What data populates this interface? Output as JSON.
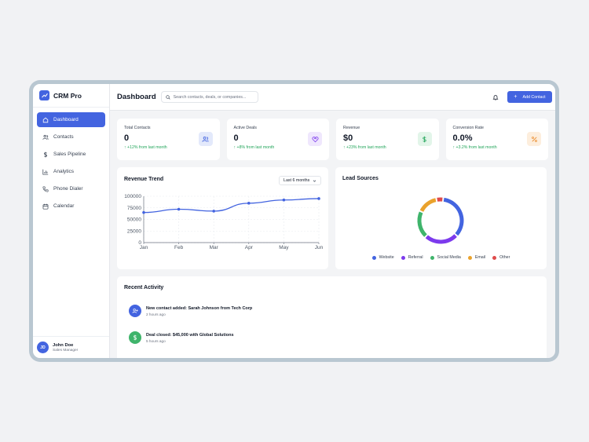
{
  "brand": {
    "name": "CRM Pro",
    "accent": "#4364e0"
  },
  "sidebar": {
    "items": [
      {
        "label": "Dashboard",
        "icon": "home-icon",
        "active": true
      },
      {
        "label": "Contacts",
        "icon": "users-icon",
        "active": false
      },
      {
        "label": "Sales Pipeline",
        "icon": "dollar-icon",
        "active": false
      },
      {
        "label": "Analytics",
        "icon": "bar-chart-icon",
        "active": false
      },
      {
        "label": "Phone Dialer",
        "icon": "phone-icon",
        "active": false
      },
      {
        "label": "Calendar",
        "icon": "calendar-icon",
        "active": false
      }
    ]
  },
  "user": {
    "initials": "JD",
    "name": "John Doe",
    "role": "Sales Manager"
  },
  "header": {
    "title": "Dashboard",
    "search_placeholder": "Search contacts, deals, or companies...",
    "add_label": "Add Contact"
  },
  "stats": [
    {
      "label": "Total Contacts",
      "value": "0",
      "change": "+12% from last month",
      "icon": "users-icon",
      "color": "#4364e0",
      "bg": "#e3e9fb"
    },
    {
      "label": "Active Deals",
      "value": "0",
      "change": "+8% from last month",
      "icon": "handshake-icon",
      "color": "#7c3aed",
      "bg": "#efe7fd"
    },
    {
      "label": "Revenue",
      "value": "$0",
      "change": "+23% from last month",
      "icon": "dollar-icon",
      "color": "#22a55a",
      "bg": "#e2f5e9"
    },
    {
      "label": "Conversion Rate",
      "value": "0.0%",
      "change": "+3.2% from last month",
      "icon": "percent-icon",
      "color": "#ea8a2a",
      "bg": "#fdeedd"
    }
  ],
  "revenue": {
    "title": "Revenue Trend",
    "period": "Last 6 months"
  },
  "chart_data": {
    "type": "line",
    "x": [
      "Jan",
      "Feb",
      "Mar",
      "Apr",
      "May",
      "Jun"
    ],
    "series": [
      {
        "values": [
          65000,
          72000,
          68000,
          85000,
          92000,
          95000
        ],
        "color": "#4364e0"
      }
    ],
    "yticks": [
      "100000",
      "75000",
      "50000",
      "25000",
      "0"
    ],
    "ylim": [
      0,
      100000
    ],
    "grid": true
  },
  "lead_sources": {
    "title": "Lead Sources",
    "items": [
      {
        "label": "Website",
        "value": 35,
        "color": "#4364e0"
      },
      {
        "label": "Referral",
        "value": 25,
        "color": "#7c3aed"
      },
      {
        "label": "Social Media",
        "value": 20,
        "color": "#3fb46b"
      },
      {
        "label": "Email",
        "value": 15,
        "color": "#eaa22c"
      },
      {
        "label": "Other",
        "value": 5,
        "color": "#df4b4b"
      }
    ]
  },
  "activity": {
    "title": "Recent Activity",
    "items": [
      {
        "title": "New contact added: Sarah Johnson from Tech Corp",
        "time": "2 hours ago",
        "icon": "user-plus-icon",
        "color": "#4364e0"
      },
      {
        "title": "Deal closed: $45,000 with Global Solutions",
        "time": "5 hours ago",
        "icon": "dollar-icon",
        "color": "#3fb46b"
      }
    ]
  }
}
